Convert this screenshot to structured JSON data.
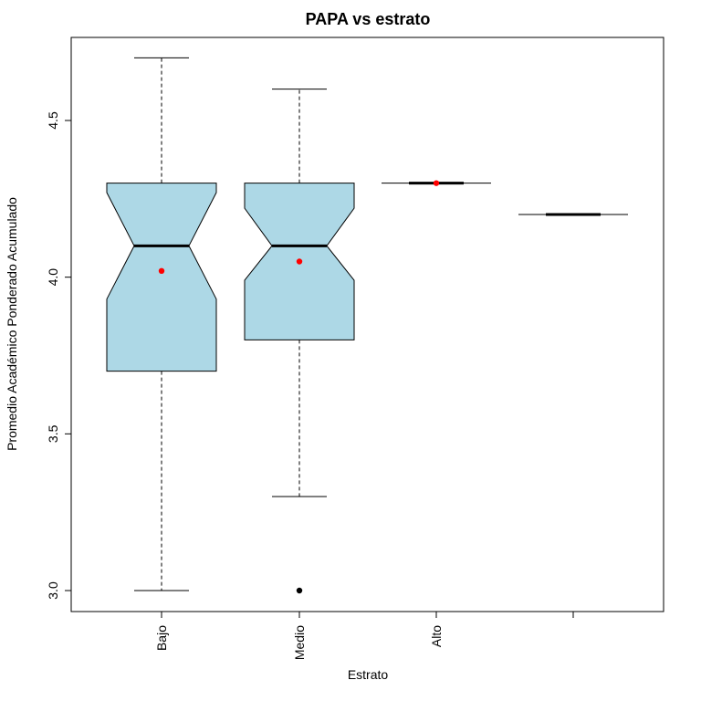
{
  "chart_data": {
    "type": "boxplot",
    "title": "PAPA vs estrato",
    "xlabel": "Estrato",
    "ylabel": "Promedio Académico Ponderado Acumulado",
    "ylim": [
      2.95,
      4.8
    ],
    "yticks": [
      3.0,
      3.5,
      4.0,
      4.5
    ],
    "ytick_labels": [
      "3.0",
      "3.5",
      "4.0",
      "4.5"
    ],
    "notched": true,
    "grid": false,
    "legend": "none",
    "colors": {
      "box_fill": "#ADD8E6",
      "mean_marker": "#FF0000",
      "outlier": "#000000",
      "line": "#000000"
    },
    "groups": [
      {
        "label": "Bajo",
        "whisker_low": 3.0,
        "q1": 3.7,
        "median": 4.1,
        "q3": 4.3,
        "whisker_high": 4.7,
        "notch_low": 3.93,
        "notch_high": 4.27,
        "mean": 4.02,
        "outliers": []
      },
      {
        "label": "Medio",
        "whisker_low": 3.3,
        "q1": 3.8,
        "median": 4.1,
        "q3": 4.3,
        "whisker_high": 4.6,
        "notch_low": 3.99,
        "notch_high": 4.22,
        "mean": 4.05,
        "outliers": [
          3.0
        ]
      },
      {
        "label": "Alto",
        "whisker_low": 4.3,
        "q1": 4.3,
        "median": 4.3,
        "q3": 4.3,
        "whisker_high": 4.3,
        "notch_low": 4.3,
        "notch_high": 4.3,
        "mean": 4.3,
        "outliers": []
      },
      {
        "label": "",
        "whisker_low": 4.2,
        "q1": 4.2,
        "median": 4.2,
        "q3": 4.2,
        "whisker_high": 4.2,
        "notch_low": 4.2,
        "notch_high": 4.2,
        "mean": null,
        "outliers": []
      }
    ]
  }
}
